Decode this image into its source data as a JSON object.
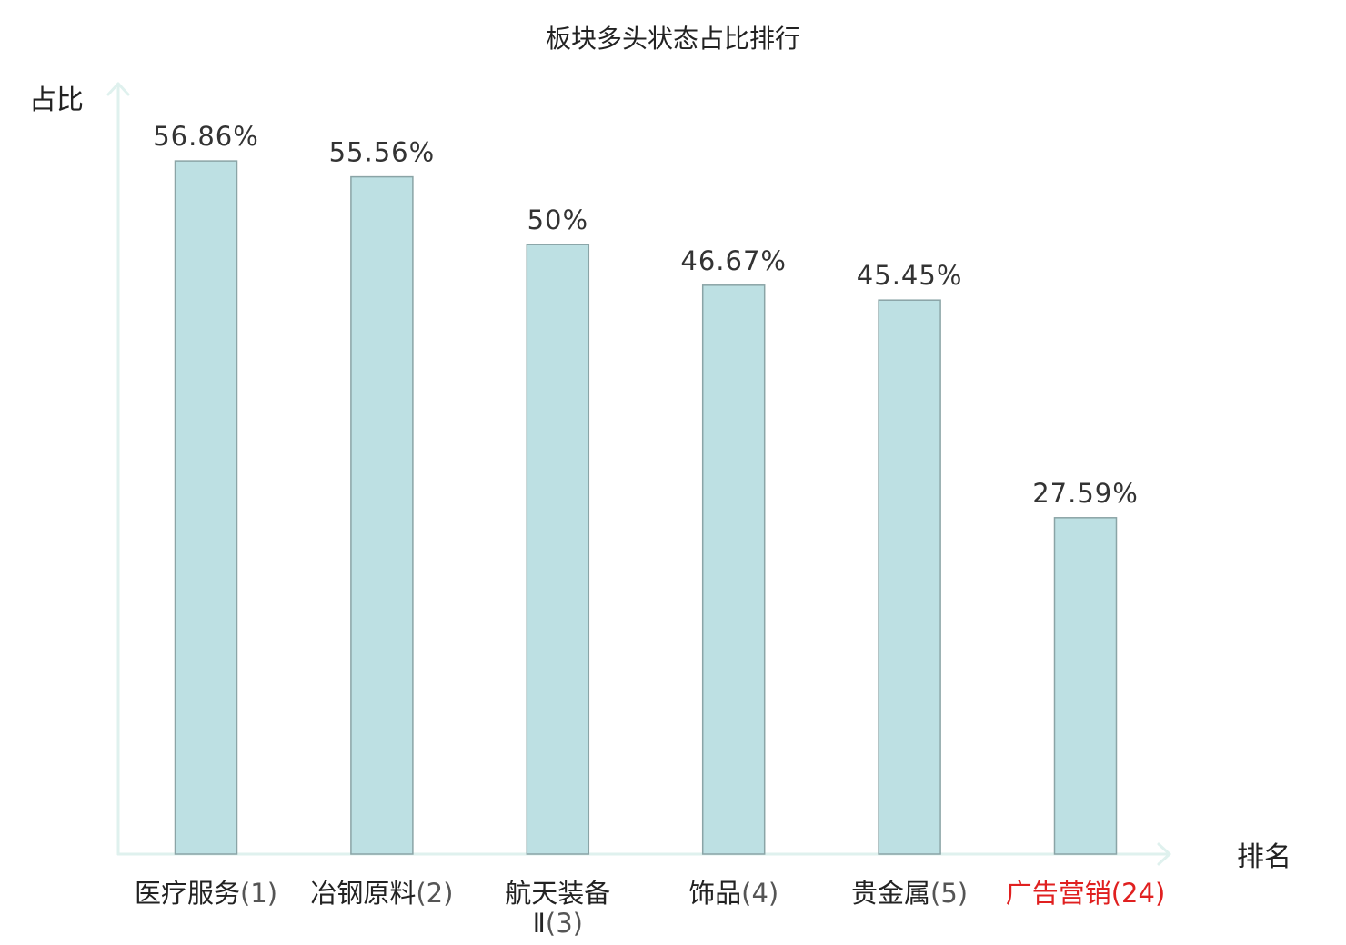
{
  "chart_data": {
    "type": "bar",
    "title": "板块多头状态占比排行",
    "ylabel": "占比",
    "xlabel": "排名",
    "categories": [
      "医疗服务",
      "冶钢原料",
      "航天装备Ⅱ",
      "饰品",
      "贵金属",
      "广告营销"
    ],
    "category_labels": [
      [
        "医疗服务(1)"
      ],
      [
        "冶钢原料(2)"
      ],
      [
        "航天装备",
        "Ⅱ(3)"
      ],
      [
        "饰品(4)"
      ],
      [
        "贵金属(5)"
      ],
      [
        "广告营销(24)"
      ]
    ],
    "ranks": [
      1,
      2,
      3,
      4,
      5,
      24
    ],
    "values": [
      56.86,
      55.56,
      50,
      46.67,
      45.45,
      27.59
    ],
    "value_labels": [
      "56.86%",
      "55.56%",
      "50%",
      "46.67%",
      "45.45%",
      "27.59%"
    ],
    "highlight_index": 5,
    "ylim": [
      0,
      60
    ],
    "grid": false,
    "colors": {
      "bar_fill": "#bde0e3",
      "bar_stroke": "#8aa4a6",
      "axis": "#dff1ee",
      "highlight_text": "#e02020",
      "text": "#222222",
      "value_text": "#333333"
    }
  }
}
